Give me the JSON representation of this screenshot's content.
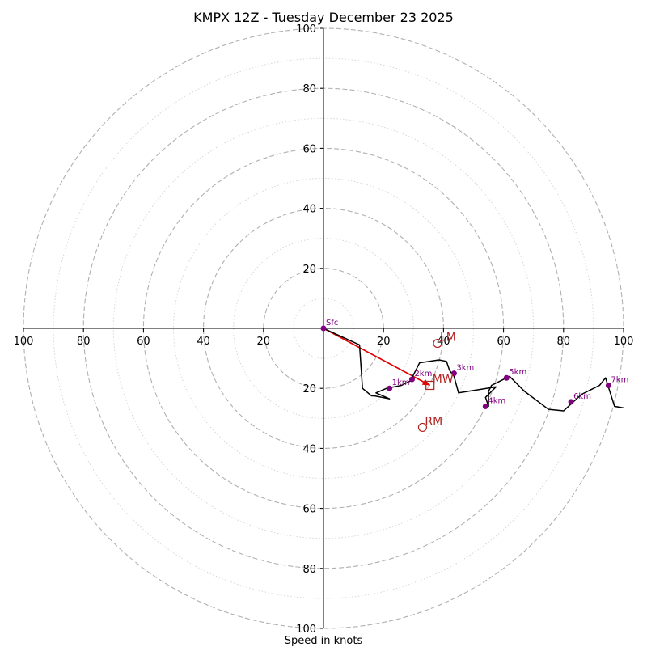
{
  "chart_data": {
    "type": "hodograph",
    "title": "KMPX 12Z - Tuesday December 23 2025",
    "xlabel": "Speed in knots",
    "range": [
      -100,
      100
    ],
    "major_rings": [
      20,
      40,
      60,
      80,
      100
    ],
    "minor_rings": [
      10,
      30,
      50,
      70,
      90
    ],
    "x_tick_values": [
      -100,
      -80,
      -60,
      -40,
      -20,
      20,
      40,
      60,
      80,
      100
    ],
    "x_tick_labels": [
      "100",
      "80",
      "60",
      "40",
      "20",
      "20",
      "40",
      "60",
      "80",
      "100"
    ],
    "y_tick_values": [
      100,
      80,
      60,
      40,
      20,
      -20,
      -40,
      -60,
      -80,
      -100
    ],
    "y_tick_labels": [
      "100",
      "80",
      "60",
      "40",
      "20",
      "20",
      "40",
      "60",
      "80",
      "100"
    ],
    "hodograph": {
      "u": [
        0,
        12,
        13,
        16,
        17,
        22,
        17.5,
        21,
        26,
        29,
        32,
        38.5,
        41,
        42,
        43.5,
        45,
        57.5,
        54,
        55,
        55,
        56,
        60,
        62,
        67,
        75,
        80,
        86,
        89,
        92,
        94,
        97,
        100
      ],
      "v": [
        0,
        -5.5,
        -20,
        -22.5,
        -22.5,
        -23.5,
        -21.5,
        -20,
        -19,
        -17.5,
        -11.5,
        -10.5,
        -11,
        -14,
        -16,
        -21.5,
        -19.5,
        -23,
        -26,
        -21,
        -19,
        -17,
        -16,
        -21,
        -27,
        -27.5,
        -22,
        -20.5,
        -19,
        -16.5,
        -26,
        -26.5
      ],
      "color": "#000000"
    },
    "height_markers": [
      {
        "label": "Sfc",
        "u": 0,
        "v": 0
      },
      {
        "label": "1km",
        "u": 22,
        "v": -20
      },
      {
        "label": "2km",
        "u": 29.5,
        "v": -17
      },
      {
        "label": "3km",
        "u": 43.5,
        "v": -15
      },
      {
        "label": "4km",
        "u": 54,
        "v": -26
      },
      {
        "label": "5km",
        "u": 61,
        "v": -16.5
      },
      {
        "label": "6km",
        "u": 82.5,
        "v": -24.5
      },
      {
        "label": "7km",
        "u": 95,
        "v": -19
      }
    ],
    "marker_color": "#800080",
    "storm_motions": [
      {
        "label": "LM",
        "u": 38,
        "v": -5,
        "marker": "circle"
      },
      {
        "label": "MW",
        "u": 35.5,
        "v": -19,
        "marker": "square"
      },
      {
        "label": "RM",
        "u": 33,
        "v": -33,
        "marker": "circle"
      }
    ],
    "storm_motion_color": "#b22222",
    "mean_wind_vector": {
      "u": 35.5,
      "v": -19,
      "color": "#e00000"
    }
  }
}
